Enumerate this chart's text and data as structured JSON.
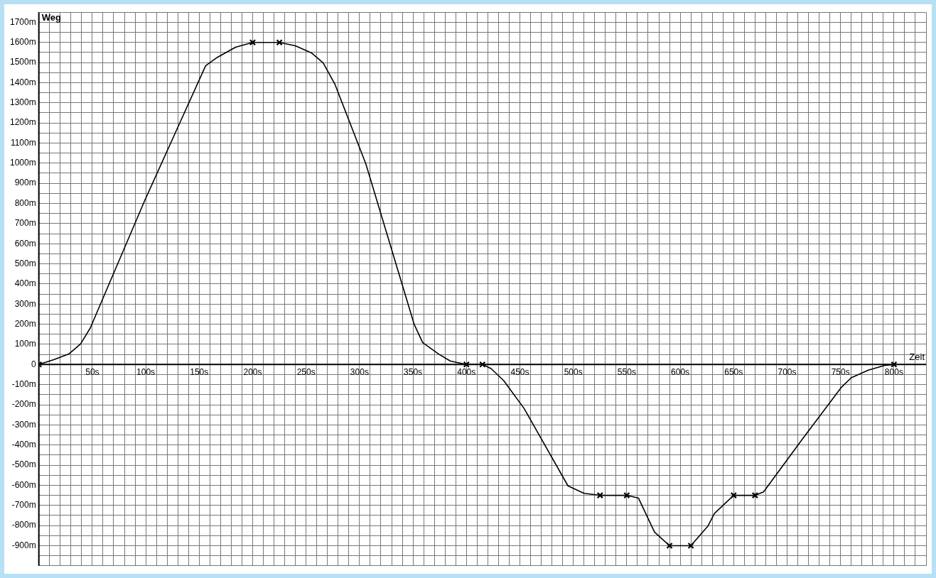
{
  "chart_data": {
    "type": "line",
    "xlabel": "Zeit",
    "ylabel": "Weg",
    "xlim": [
      0,
      830
    ],
    "ylim": [
      -1000,
      1750
    ],
    "xticks": [
      {
        "value": 0,
        "label": null
      },
      {
        "value": 10,
        "label": null
      },
      {
        "value": 20,
        "label": null
      },
      {
        "value": 30,
        "label": null
      },
      {
        "value": 40,
        "label": null
      },
      {
        "value": 50,
        "label": "50s"
      },
      {
        "value": 60,
        "label": null
      },
      {
        "value": 70,
        "label": null
      },
      {
        "value": 80,
        "label": null
      },
      {
        "value": 90,
        "label": null
      },
      {
        "value": 100,
        "label": "100s"
      },
      {
        "value": 110,
        "label": null
      },
      {
        "value": 120,
        "label": null
      },
      {
        "value": 130,
        "label": null
      },
      {
        "value": 140,
        "label": null
      },
      {
        "value": 150,
        "label": "150s"
      },
      {
        "value": 160,
        "label": null
      },
      {
        "value": 170,
        "label": null
      },
      {
        "value": 180,
        "label": null
      },
      {
        "value": 190,
        "label": null
      },
      {
        "value": 200,
        "label": "200s"
      },
      {
        "value": 210,
        "label": null
      },
      {
        "value": 220,
        "label": null
      },
      {
        "value": 230,
        "label": null
      },
      {
        "value": 240,
        "label": null
      },
      {
        "value": 250,
        "label": "250s"
      },
      {
        "value": 260,
        "label": null
      },
      {
        "value": 270,
        "label": null
      },
      {
        "value": 280,
        "label": null
      },
      {
        "value": 290,
        "label": null
      },
      {
        "value": 300,
        "label": "300s"
      },
      {
        "value": 310,
        "label": null
      },
      {
        "value": 320,
        "label": null
      },
      {
        "value": 330,
        "label": null
      },
      {
        "value": 340,
        "label": null
      },
      {
        "value": 350,
        "label": "350s"
      },
      {
        "value": 360,
        "label": null
      },
      {
        "value": 370,
        "label": null
      },
      {
        "value": 380,
        "label": null
      },
      {
        "value": 390,
        "label": null
      },
      {
        "value": 400,
        "label": "400s"
      },
      {
        "value": 410,
        "label": null
      },
      {
        "value": 420,
        "label": null
      },
      {
        "value": 430,
        "label": null
      },
      {
        "value": 440,
        "label": null
      },
      {
        "value": 450,
        "label": "450s"
      },
      {
        "value": 460,
        "label": null
      },
      {
        "value": 470,
        "label": null
      },
      {
        "value": 480,
        "label": null
      },
      {
        "value": 490,
        "label": null
      },
      {
        "value": 500,
        "label": "500s"
      },
      {
        "value": 510,
        "label": null
      },
      {
        "value": 520,
        "label": null
      },
      {
        "value": 530,
        "label": null
      },
      {
        "value": 540,
        "label": null
      },
      {
        "value": 550,
        "label": "550s"
      },
      {
        "value": 560,
        "label": null
      },
      {
        "value": 570,
        "label": null
      },
      {
        "value": 580,
        "label": null
      },
      {
        "value": 590,
        "label": null
      },
      {
        "value": 600,
        "label": "600s"
      },
      {
        "value": 610,
        "label": null
      },
      {
        "value": 620,
        "label": null
      },
      {
        "value": 630,
        "label": null
      },
      {
        "value": 640,
        "label": null
      },
      {
        "value": 650,
        "label": "650s"
      },
      {
        "value": 660,
        "label": null
      },
      {
        "value": 670,
        "label": null
      },
      {
        "value": 680,
        "label": null
      },
      {
        "value": 690,
        "label": null
      },
      {
        "value": 700,
        "label": "700s"
      },
      {
        "value": 710,
        "label": null
      },
      {
        "value": 720,
        "label": null
      },
      {
        "value": 730,
        "label": null
      },
      {
        "value": 740,
        "label": null
      },
      {
        "value": 750,
        "label": "750s"
      },
      {
        "value": 760,
        "label": null
      },
      {
        "value": 770,
        "label": null
      },
      {
        "value": 780,
        "label": null
      },
      {
        "value": 790,
        "label": null
      },
      {
        "value": 800,
        "label": "800s"
      },
      {
        "value": 810,
        "label": null
      },
      {
        "value": 820,
        "label": null
      },
      {
        "value": 830,
        "label": null
      }
    ],
    "yticks": [
      {
        "value": -1000,
        "label": null
      },
      {
        "value": -950,
        "label": null
      },
      {
        "value": -900,
        "label": "-900m"
      },
      {
        "value": -850,
        "label": null
      },
      {
        "value": -800,
        "label": "-800m"
      },
      {
        "value": -750,
        "label": null
      },
      {
        "value": -700,
        "label": "-700m"
      },
      {
        "value": -650,
        "label": null
      },
      {
        "value": -600,
        "label": "-600m"
      },
      {
        "value": -550,
        "label": null
      },
      {
        "value": -500,
        "label": "-500m"
      },
      {
        "value": -450,
        "label": null
      },
      {
        "value": -400,
        "label": "-400m"
      },
      {
        "value": -350,
        "label": null
      },
      {
        "value": -300,
        "label": "-300m"
      },
      {
        "value": -250,
        "label": null
      },
      {
        "value": -200,
        "label": "-200m"
      },
      {
        "value": -150,
        "label": null
      },
      {
        "value": -100,
        "label": "-100m"
      },
      {
        "value": -50,
        "label": null
      },
      {
        "value": 0,
        "label": "0"
      },
      {
        "value": 50,
        "label": null
      },
      {
        "value": 100,
        "label": "100m"
      },
      {
        "value": 150,
        "label": null
      },
      {
        "value": 200,
        "label": "200m"
      },
      {
        "value": 250,
        "label": null
      },
      {
        "value": 300,
        "label": "300m"
      },
      {
        "value": 350,
        "label": null
      },
      {
        "value": 400,
        "label": "400m"
      },
      {
        "value": 450,
        "label": null
      },
      {
        "value": 500,
        "label": "500m"
      },
      {
        "value": 550,
        "label": null
      },
      {
        "value": 600,
        "label": "600m"
      },
      {
        "value": 650,
        "label": null
      },
      {
        "value": 700,
        "label": "700m"
      },
      {
        "value": 750,
        "label": null
      },
      {
        "value": 800,
        "label": "800m"
      },
      {
        "value": 850,
        "label": null
      },
      {
        "value": 900,
        "label": "900m"
      },
      {
        "value": 950,
        "label": null
      },
      {
        "value": 1000,
        "label": "1000m"
      },
      {
        "value": 1050,
        "label": null
      },
      {
        "value": 1100,
        "label": "1100m"
      },
      {
        "value": 1150,
        "label": null
      },
      {
        "value": 1200,
        "label": "1200m"
      },
      {
        "value": 1250,
        "label": null
      },
      {
        "value": 1300,
        "label": "1300m"
      },
      {
        "value": 1350,
        "label": null
      },
      {
        "value": 1400,
        "label": "1400m"
      },
      {
        "value": 1450,
        "label": null
      },
      {
        "value": 1500,
        "label": "1500m"
      },
      {
        "value": 1550,
        "label": null
      },
      {
        "value": 1600,
        "label": "1600m"
      },
      {
        "value": 1650,
        "label": null
      },
      {
        "value": 1700,
        "label": "1700m"
      },
      {
        "value": 1750,
        "label": null
      }
    ],
    "grid": true,
    "legend": false,
    "marker": "none",
    "series": [
      {
        "color": "#000000",
        "x": [
          0,
          14,
          28,
          39,
          48,
          99,
          156,
          167,
          184,
          200,
          225,
          240,
          255,
          266,
          277,
          306,
          351,
          359,
          374,
          385,
          400,
          415,
          423,
          435,
          454,
          495,
          510,
          525,
          550,
          561,
          576,
          590,
          610,
          626,
          632,
          650,
          670,
          678,
          714,
          751,
          760,
          776,
          791,
          800
        ],
        "values": [
          0,
          24,
          52,
          102,
          180,
          814,
          1484,
          1526,
          1576,
          1600,
          1600,
          1583,
          1548,
          1498,
          1392,
          995,
          201,
          109,
          52,
          17,
          0,
          0,
          -20,
          -81,
          -219,
          -603,
          -640,
          -650,
          -650,
          -664,
          -833,
          -900,
          -900,
          -802,
          -740,
          -650,
          -650,
          -633,
          -373,
          -112,
          -66,
          -28,
          -5,
          0
        ]
      },
      {
        "type": "scatter",
        "color": "#000000",
        "marker": "cross",
        "x": [
          0,
          200,
          225,
          400,
          415,
          525,
          550,
          590,
          610,
          650,
          670,
          800
        ],
        "values": [
          0,
          1600,
          1600,
          0,
          0,
          -650,
          -650,
          -900,
          -900,
          -650,
          -650,
          0
        ]
      }
    ]
  }
}
